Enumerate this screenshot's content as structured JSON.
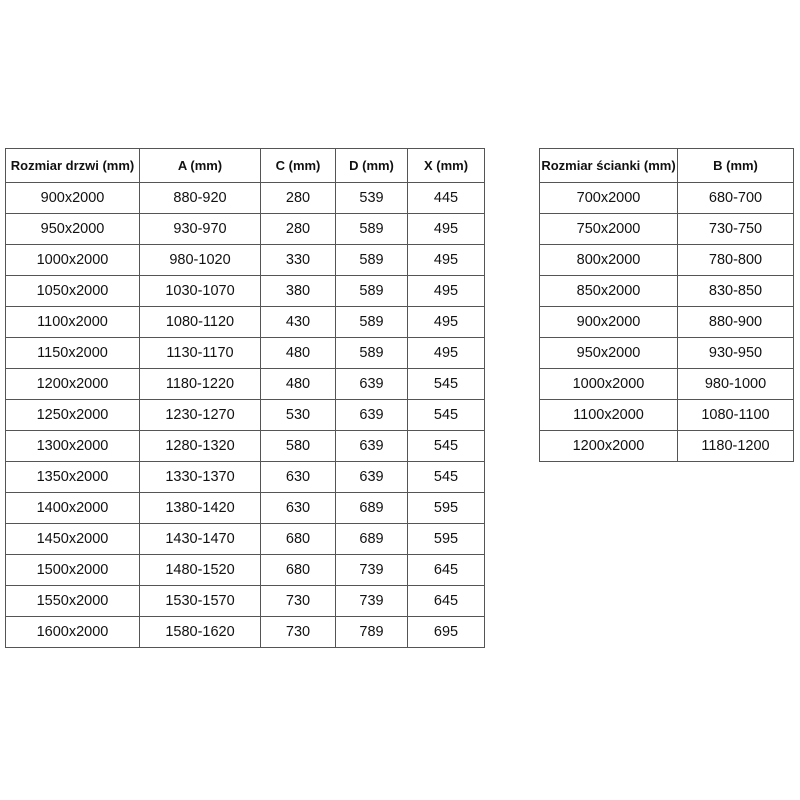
{
  "colors": {
    "background": "#ffffff",
    "table_border": "#555555",
    "text": "#111111"
  },
  "door_table": {
    "headers": [
      "Rozmiar drzwi (mm)",
      "A (mm)",
      "C (mm)",
      "D (mm)",
      "X (mm)"
    ],
    "rows": [
      [
        "900x2000",
        "880-920",
        "280",
        "539",
        "445"
      ],
      [
        "950x2000",
        "930-970",
        "280",
        "589",
        "495"
      ],
      [
        "1000x2000",
        "980-1020",
        "330",
        "589",
        "495"
      ],
      [
        "1050x2000",
        "1030-1070",
        "380",
        "589",
        "495"
      ],
      [
        "1100x2000",
        "1080-1120",
        "430",
        "589",
        "495"
      ],
      [
        "1150x2000",
        "1130-1170",
        "480",
        "589",
        "495"
      ],
      [
        "1200x2000",
        "1180-1220",
        "480",
        "639",
        "545"
      ],
      [
        "1250x2000",
        "1230-1270",
        "530",
        "639",
        "545"
      ],
      [
        "1300x2000",
        "1280-1320",
        "580",
        "639",
        "545"
      ],
      [
        "1350x2000",
        "1330-1370",
        "630",
        "639",
        "545"
      ],
      [
        "1400x2000",
        "1380-1420",
        "630",
        "689",
        "595"
      ],
      [
        "1450x2000",
        "1430-1470",
        "680",
        "689",
        "595"
      ],
      [
        "1500x2000",
        "1480-1520",
        "680",
        "739",
        "645"
      ],
      [
        "1550x2000",
        "1530-1570",
        "730",
        "739",
        "645"
      ],
      [
        "1600x2000",
        "1580-1620",
        "730",
        "789",
        "695"
      ]
    ]
  },
  "wall_table": {
    "headers": [
      "Rozmiar ścianki (mm)",
      "B (mm)"
    ],
    "rows": [
      [
        "700x2000",
        "680-700"
      ],
      [
        "750x2000",
        "730-750"
      ],
      [
        "800x2000",
        "780-800"
      ],
      [
        "850x2000",
        "830-850"
      ],
      [
        "900x2000",
        "880-900"
      ],
      [
        "950x2000",
        "930-950"
      ],
      [
        "1000x2000",
        "980-1000"
      ],
      [
        "1100x2000",
        "1080-1100"
      ],
      [
        "1200x2000",
        "1180-1200"
      ]
    ]
  }
}
